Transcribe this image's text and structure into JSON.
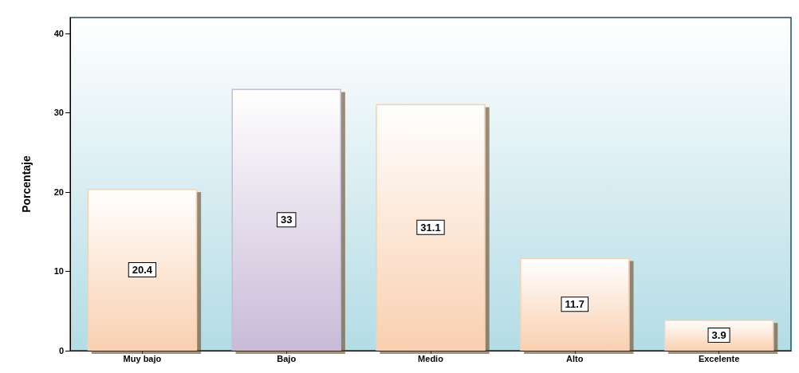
{
  "chart_data": {
    "type": "bar",
    "ylabel": "Porcentaje",
    "categories": [
      "Muy bajo",
      "Bajo",
      "Medio",
      "Alto",
      "Excelente"
    ],
    "values": [
      20.4,
      33,
      31.1,
      11.7,
      3.9
    ],
    "colors": [
      "#f9d0b0",
      "#c9bbd8",
      "#f9d0b0",
      "#f9d0b0",
      "#f9d0b0"
    ],
    "ylim": [
      0,
      42
    ],
    "yticks": [
      0,
      10,
      20,
      30,
      40
    ],
    "grid": false,
    "data_labels": true
  }
}
